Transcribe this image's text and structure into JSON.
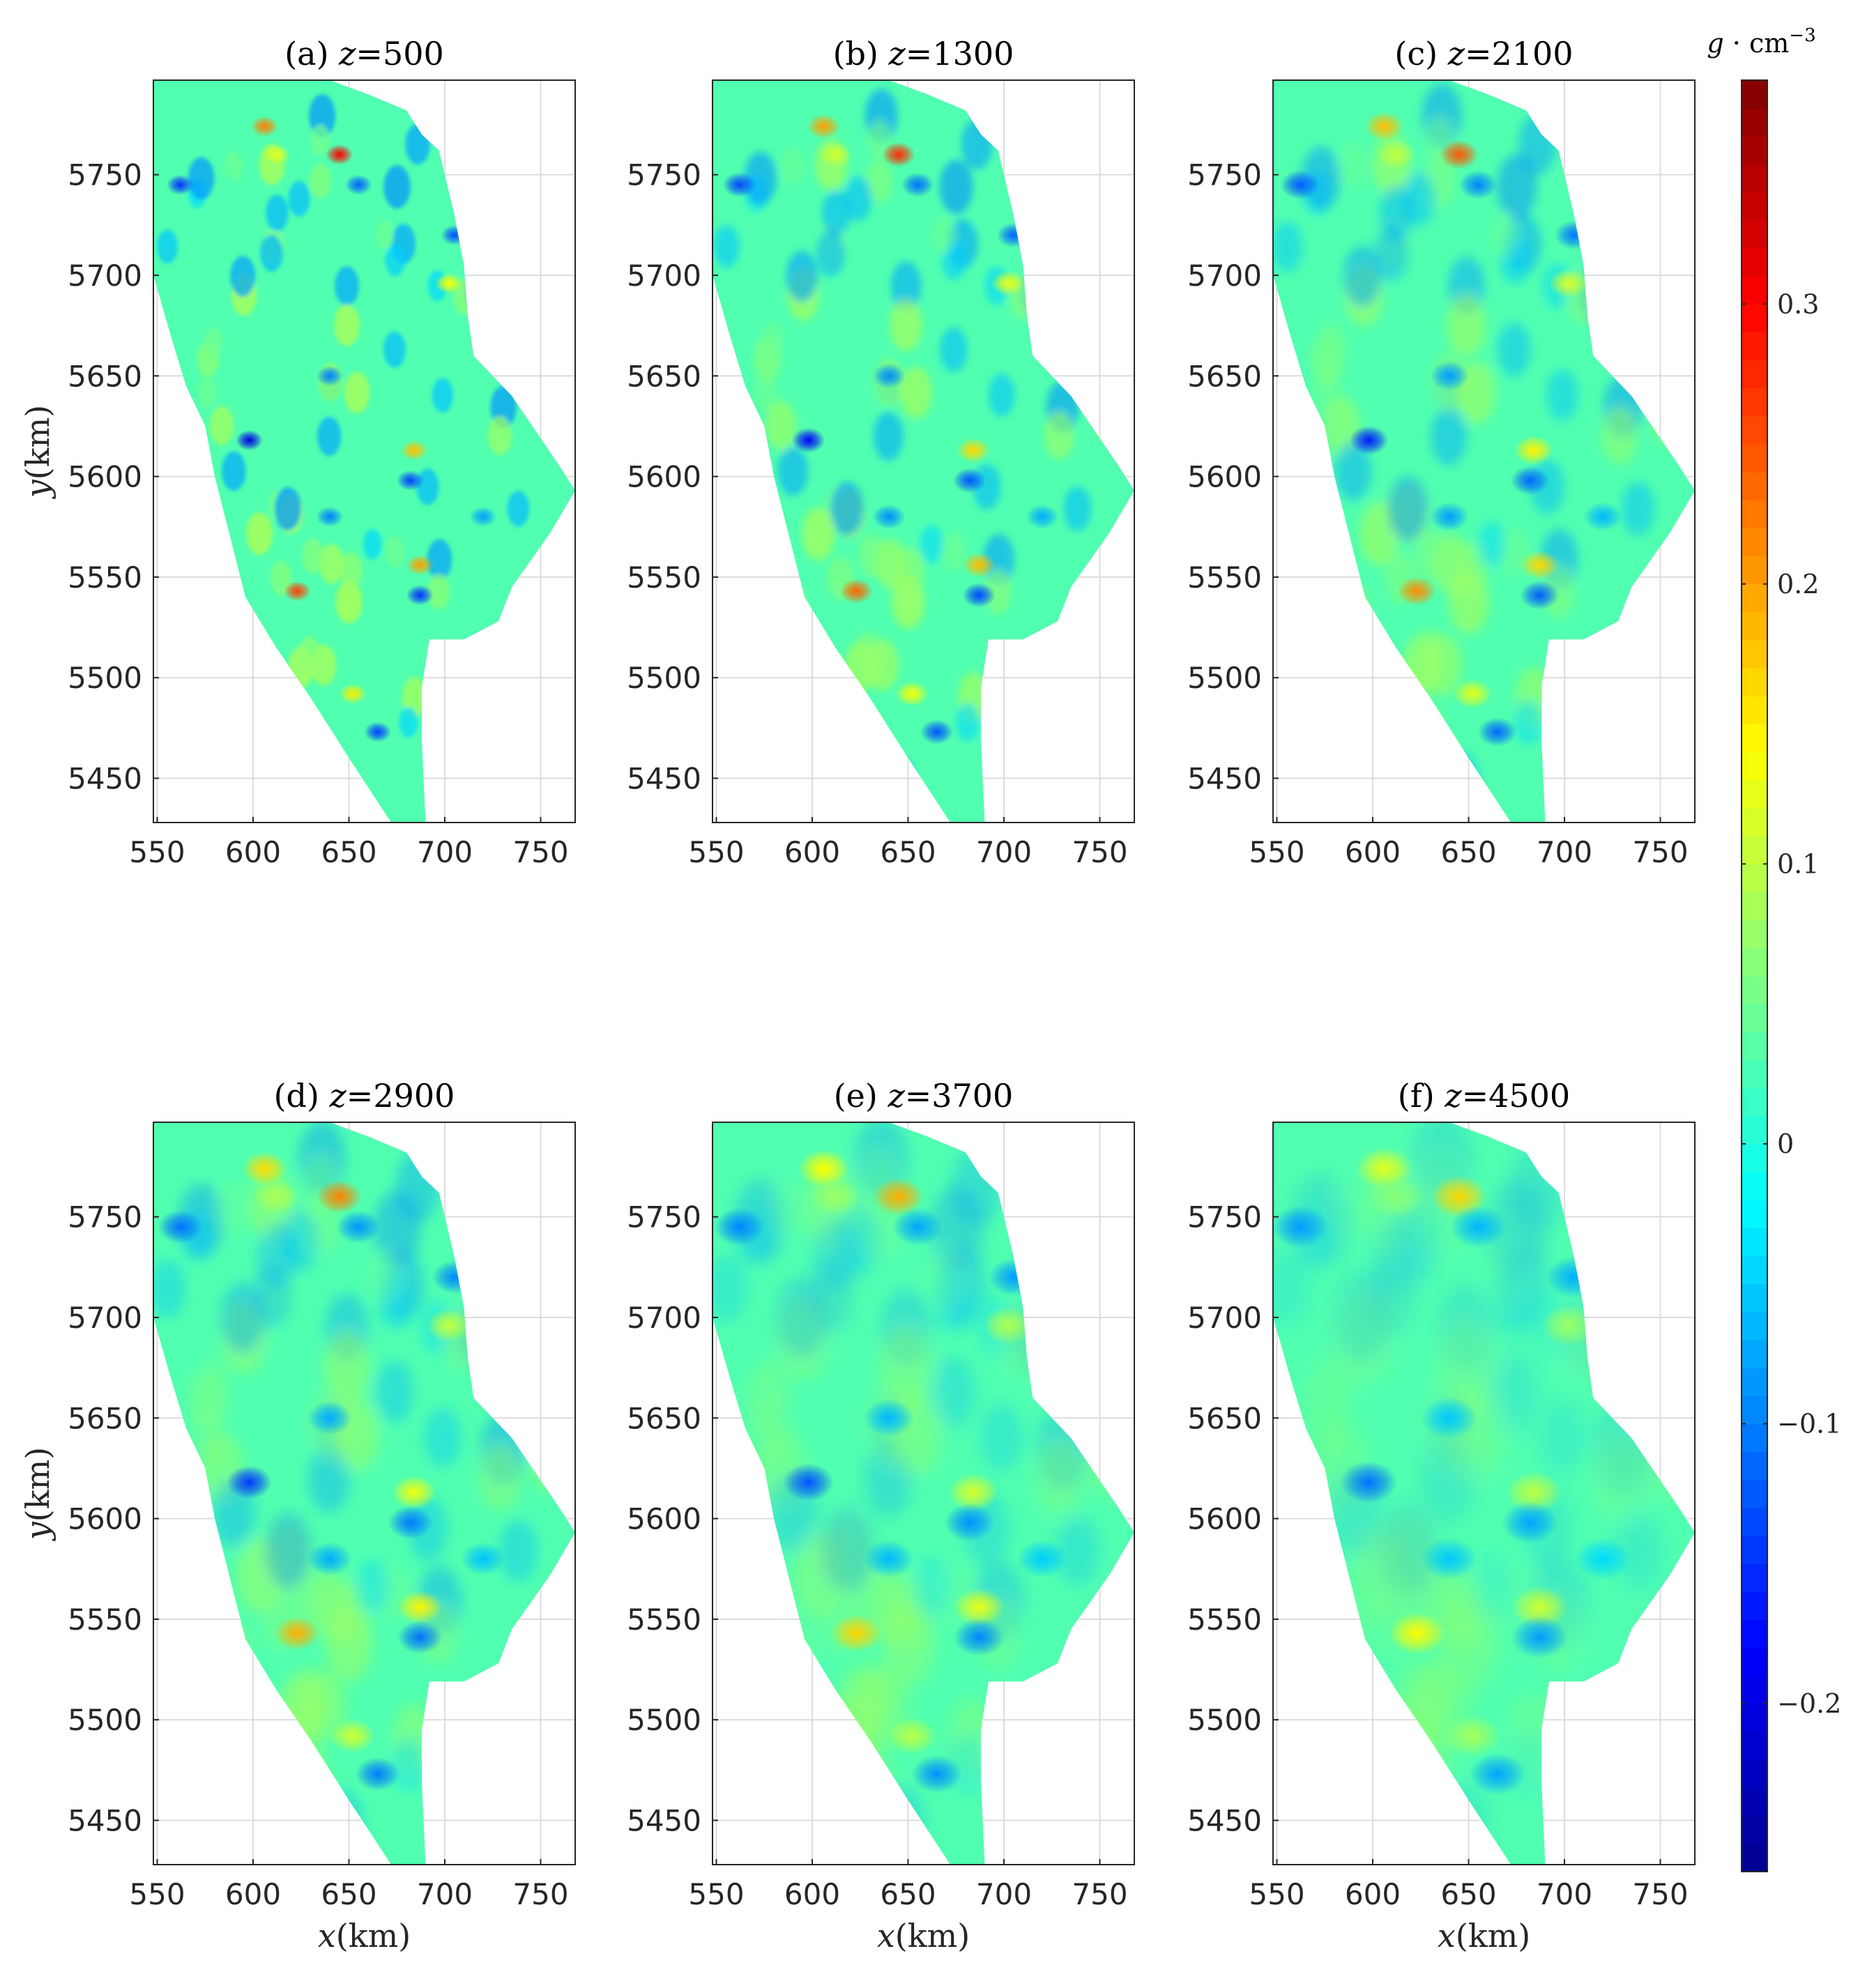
{
  "chart_data": {
    "type": "heatmap",
    "xlim": [
      548,
      768
    ],
    "ylim": [
      5428,
      5797
    ],
    "xticks": [
      550,
      600,
      650,
      700,
      750
    ],
    "yticks": [
      5450,
      5500,
      5550,
      5600,
      5650,
      5700,
      5750
    ],
    "grid": true,
    "xlabel_italic": "x",
    "xlabel_unit": "(km)",
    "ylabel_italic": "y",
    "ylabel_unit": "(km)",
    "boundary": [
      [
        548,
        5797
      ],
      [
        640,
        5797
      ],
      [
        660,
        5790
      ],
      [
        680,
        5782
      ],
      [
        688,
        5770
      ],
      [
        697,
        5762
      ],
      [
        705,
        5730
      ],
      [
        710,
        5705
      ],
      [
        712,
        5680
      ],
      [
        715,
        5660
      ],
      [
        735,
        5640
      ],
      [
        760,
        5605
      ],
      [
        768,
        5593
      ],
      [
        755,
        5572
      ],
      [
        735,
        5545
      ],
      [
        728,
        5528
      ],
      [
        710,
        5519
      ],
      [
        692,
        5519
      ],
      [
        688,
        5495
      ],
      [
        688,
        5470
      ],
      [
        690,
        5428
      ],
      [
        672,
        5428
      ],
      [
        650,
        5460
      ],
      [
        630,
        5490
      ],
      [
        612,
        5515
      ],
      [
        596,
        5540
      ],
      [
        588,
        5570
      ],
      [
        580,
        5600
      ],
      [
        575,
        5625
      ],
      [
        565,
        5645
      ],
      [
        557,
        5670
      ],
      [
        548,
        5700
      ]
    ],
    "panels": [
      {
        "label": "(a) ",
        "var": "z",
        "value": "=500",
        "smoothing": 0
      },
      {
        "label": "(b) ",
        "var": "z",
        "value": "=1300",
        "smoothing": 1
      },
      {
        "label": "(c) ",
        "var": "z",
        "value": "=2100",
        "smoothing": 2
      },
      {
        "label": "(d) ",
        "var": "z",
        "value": "=2900",
        "smoothing": 3
      },
      {
        "label": "(e) ",
        "var": "z",
        "value": "=3700",
        "smoothing": 4
      },
      {
        "label": "(f) ",
        "var": "z",
        "value": "=4500",
        "smoothing": 5
      }
    ],
    "anomalies": [
      {
        "x": 623,
        "y": 5543,
        "v": 0.26
      },
      {
        "x": 645,
        "y": 5760,
        "v": 0.3
      },
      {
        "x": 606,
        "y": 5774,
        "v": 0.22
      },
      {
        "x": 684,
        "y": 5613,
        "v": 0.18
      },
      {
        "x": 687,
        "y": 5556,
        "v": 0.2
      },
      {
        "x": 702,
        "y": 5696,
        "v": 0.14
      },
      {
        "x": 652,
        "y": 5492,
        "v": 0.15
      },
      {
        "x": 612,
        "y": 5760,
        "v": 0.12
      },
      {
        "x": 598,
        "y": 5618,
        "v": -0.2
      },
      {
        "x": 562,
        "y": 5745,
        "v": -0.15
      },
      {
        "x": 682,
        "y": 5598,
        "v": -0.14
      },
      {
        "x": 687,
        "y": 5541,
        "v": -0.15
      },
      {
        "x": 665,
        "y": 5473,
        "v": -0.14
      },
      {
        "x": 655,
        "y": 5745,
        "v": -0.12
      },
      {
        "x": 640,
        "y": 5650,
        "v": -0.1
      },
      {
        "x": 705,
        "y": 5720,
        "v": -0.13
      },
      {
        "x": 640,
        "y": 5580,
        "v": -0.1
      },
      {
        "x": 720,
        "y": 5580,
        "v": -0.08
      }
    ],
    "colorbar": {
      "min": -0.26,
      "max": 0.38,
      "ticks": [
        -0.2,
        -0.1,
        0,
        0.1,
        0.2,
        0.3
      ],
      "ticklabels": [
        "−0.2",
        "−0.1",
        "0",
        "0.1",
        "0.2",
        "0.3"
      ],
      "colormap": "jet",
      "levels": 64,
      "unit_main": "g · cm",
      "unit_exp": "−3"
    },
    "colors": {
      "jet": [
        "#00008f",
        "#0000ff",
        "#0080ff",
        "#00ffff",
        "#80ff80",
        "#ffff00",
        "#ff8000",
        "#ff0000",
        "#800000"
      ],
      "axis": "#262626",
      "grid": "#dcdcdc"
    }
  }
}
